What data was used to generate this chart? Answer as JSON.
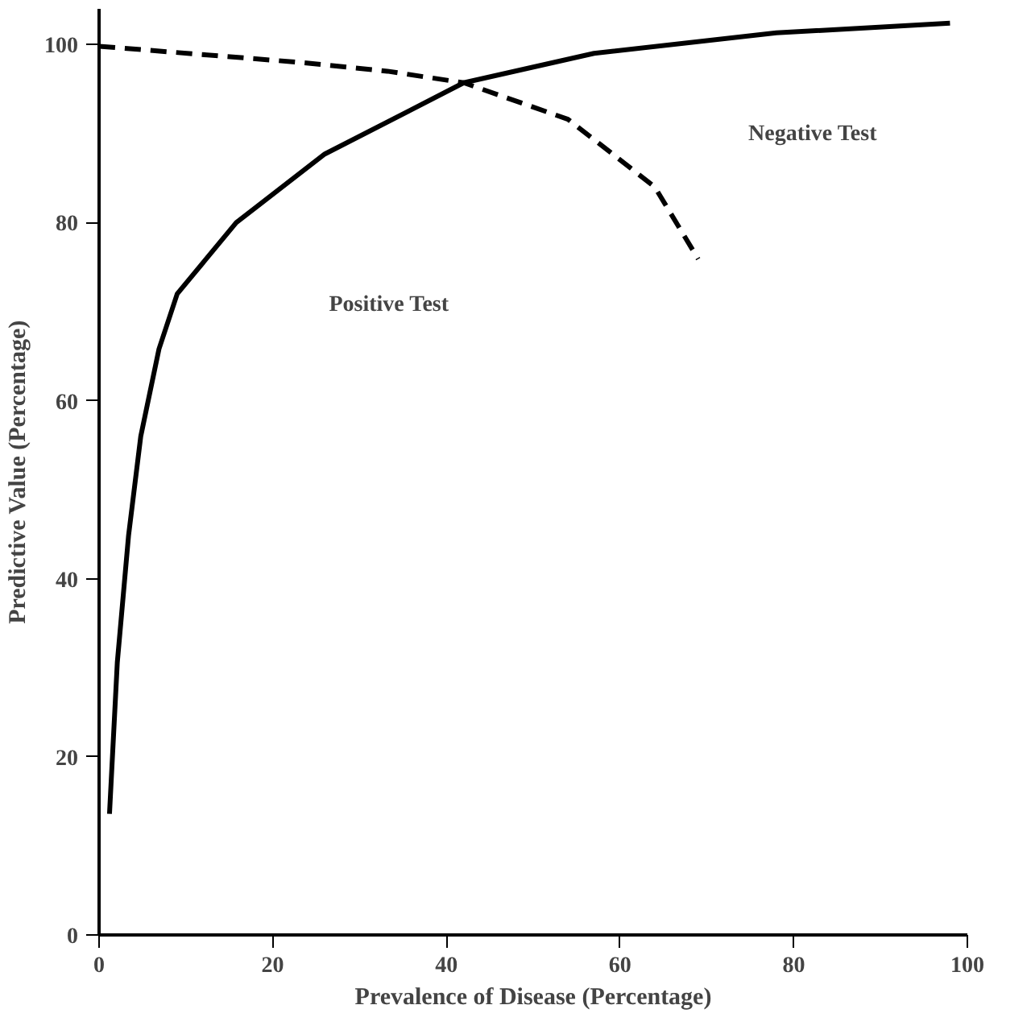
{
  "chart_data": {
    "type": "line",
    "xlabel": "Prevalence of Disease (Percentage)",
    "ylabel": "Predictive Value (Percentage)",
    "xlim": [
      0,
      100
    ],
    "ylim": [
      0,
      104
    ],
    "xticks": [
      0,
      20,
      40,
      60,
      80,
      100
    ],
    "yticks": [
      0,
      20,
      40,
      60,
      80,
      100
    ],
    "grid": false,
    "series": [
      {
        "color": "#000000",
        "line_style": "solid",
        "x": [
          1.2,
          2.1,
          3.4,
          4.8,
          6.9,
          9,
          12.4,
          15.8,
          26,
          42,
          57,
          78,
          98
        ],
        "values": [
          13.6,
          30.6,
          44.9,
          56,
          65.8,
          72,
          76,
          80,
          87.7,
          95.7,
          99,
          101.3,
          102.4
        ]
      },
      {
        "color": "#000000",
        "line_style": "dashed",
        "x": [
          0,
          23,
          33.2,
          42,
          54,
          59.4,
          64,
          69
        ],
        "values": [
          99.8,
          98,
          97,
          95.7,
          91.6,
          87.5,
          84,
          75.9
        ]
      }
    ],
    "annotations": [
      "Positive Test",
      "Negative Test"
    ]
  }
}
